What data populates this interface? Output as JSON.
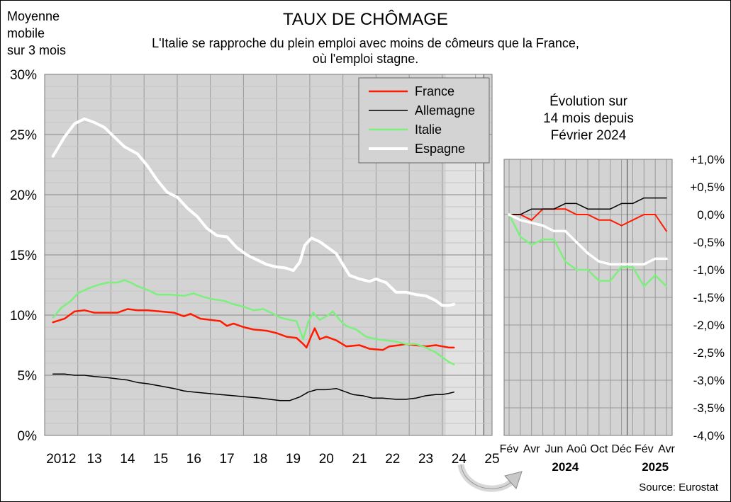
{
  "header": {
    "title": "TAUX DE CHÔMAGE",
    "subtitle_line1": "L'Italie se rapproche du plein emploi avec moins de cômeurs que la France,",
    "subtitle_line2": "où l'emploi stagne.",
    "ylabel_line1": "Moyenne",
    "ylabel_line2": "mobile",
    "ylabel_line3": "sur 3 mois",
    "source": "Source: Eurostat"
  },
  "chart_data": [
    {
      "type": "line",
      "title": "TAUX DE CHÔMAGE",
      "ylabel": "Moyenne mobile sur 3 mois",
      "ylim": [
        0,
        30
      ],
      "xlim": [
        2012,
        2025.5
      ],
      "y_ticks": [
        0,
        5,
        10,
        15,
        20,
        25,
        30
      ],
      "y_tick_labels": [
        "0%",
        "5%",
        "10%",
        "15%",
        "20%",
        "25%",
        "30%"
      ],
      "x_ticks": [
        2012.5,
        2013.5,
        2014.5,
        2015.5,
        2016.5,
        2017.5,
        2018.5,
        2019.5,
        2020.5,
        2021.5,
        2022.5,
        2023.5,
        2024.5,
        2025.5
      ],
      "x_tick_labels": [
        "2012",
        "13",
        "14",
        "15",
        "16",
        "17",
        "18",
        "19",
        "20",
        "21",
        "22",
        "23",
        "24",
        "25"
      ],
      "highlight_period": [
        2024.1,
        2025.25
      ],
      "grid": true,
      "legend_position": "top-right",
      "series": [
        {
          "name": "France",
          "color": "#ff1a00",
          "width": 2.5,
          "points": [
            [
              2012.25,
              9.4
            ],
            [
              2012.6,
              9.7
            ],
            [
              2012.9,
              10.3
            ],
            [
              2013.2,
              10.4
            ],
            [
              2013.5,
              10.2
            ],
            [
              2013.9,
              10.2
            ],
            [
              2014.2,
              10.2
            ],
            [
              2014.5,
              10.5
            ],
            [
              2014.8,
              10.4
            ],
            [
              2015.1,
              10.4
            ],
            [
              2015.5,
              10.3
            ],
            [
              2015.9,
              10.2
            ],
            [
              2016.2,
              9.9
            ],
            [
              2016.4,
              10.1
            ],
            [
              2016.7,
              9.7
            ],
            [
              2017.0,
              9.6
            ],
            [
              2017.3,
              9.5
            ],
            [
              2017.5,
              9.1
            ],
            [
              2017.7,
              9.3
            ],
            [
              2018.0,
              9.0
            ],
            [
              2018.3,
              8.8
            ],
            [
              2018.7,
              8.7
            ],
            [
              2019.0,
              8.5
            ],
            [
              2019.3,
              8.2
            ],
            [
              2019.6,
              8.1
            ],
            [
              2019.8,
              7.6
            ],
            [
              2019.9,
              7.3
            ],
            [
              2020.05,
              8.3
            ],
            [
              2020.15,
              8.9
            ],
            [
              2020.3,
              8.0
            ],
            [
              2020.5,
              8.2
            ],
            [
              2020.8,
              7.9
            ],
            [
              2021.1,
              7.4
            ],
            [
              2021.5,
              7.5
            ],
            [
              2021.8,
              7.2
            ],
            [
              2022.2,
              7.1
            ],
            [
              2022.4,
              7.4
            ],
            [
              2022.7,
              7.5
            ],
            [
              2022.9,
              7.6
            ],
            [
              2023.2,
              7.5
            ],
            [
              2023.5,
              7.4
            ],
            [
              2023.8,
              7.5
            ],
            [
              2024.0,
              7.4
            ],
            [
              2024.2,
              7.3
            ],
            [
              2024.35,
              7.3
            ]
          ]
        },
        {
          "name": "Allemagne",
          "color": "#000000",
          "width": 1.5,
          "points": [
            [
              2012.25,
              5.1
            ],
            [
              2012.6,
              5.1
            ],
            [
              2012.9,
              5.0
            ],
            [
              2013.2,
              5.0
            ],
            [
              2013.5,
              4.9
            ],
            [
              2013.9,
              4.8
            ],
            [
              2014.2,
              4.7
            ],
            [
              2014.5,
              4.6
            ],
            [
              2014.8,
              4.4
            ],
            [
              2015.1,
              4.3
            ],
            [
              2015.5,
              4.1
            ],
            [
              2015.9,
              3.9
            ],
            [
              2016.2,
              3.7
            ],
            [
              2016.5,
              3.6
            ],
            [
              2016.9,
              3.5
            ],
            [
              2017.3,
              3.4
            ],
            [
              2017.7,
              3.3
            ],
            [
              2018.1,
              3.2
            ],
            [
              2018.5,
              3.1
            ],
            [
              2018.8,
              3.0
            ],
            [
              2019.1,
              2.9
            ],
            [
              2019.4,
              2.9
            ],
            [
              2019.7,
              3.2
            ],
            [
              2019.95,
              3.6
            ],
            [
              2020.2,
              3.8
            ],
            [
              2020.5,
              3.8
            ],
            [
              2020.8,
              3.9
            ],
            [
              2021.0,
              3.7
            ],
            [
              2021.3,
              3.4
            ],
            [
              2021.6,
              3.3
            ],
            [
              2021.9,
              3.1
            ],
            [
              2022.2,
              3.1
            ],
            [
              2022.6,
              3.0
            ],
            [
              2022.9,
              3.0
            ],
            [
              2023.2,
              3.1
            ],
            [
              2023.5,
              3.3
            ],
            [
              2023.8,
              3.4
            ],
            [
              2024.0,
              3.4
            ],
            [
              2024.2,
              3.5
            ],
            [
              2024.35,
              3.6
            ]
          ]
        },
        {
          "name": "Italie",
          "color": "#7cf07c",
          "width": 2.5,
          "points": [
            [
              2012.25,
              9.8
            ],
            [
              2012.5,
              10.6
            ],
            [
              2012.8,
              11.2
            ],
            [
              2013.0,
              11.8
            ],
            [
              2013.3,
              12.2
            ],
            [
              2013.6,
              12.5
            ],
            [
              2013.9,
              12.7
            ],
            [
              2014.2,
              12.7
            ],
            [
              2014.4,
              12.9
            ],
            [
              2014.6,
              12.7
            ],
            [
              2014.8,
              12.4
            ],
            [
              2015.1,
              12.1
            ],
            [
              2015.4,
              11.7
            ],
            [
              2015.8,
              11.7
            ],
            [
              2016.2,
              11.6
            ],
            [
              2016.5,
              11.8
            ],
            [
              2016.8,
              11.5
            ],
            [
              2017.1,
              11.3
            ],
            [
              2017.4,
              11.2
            ],
            [
              2017.7,
              10.9
            ],
            [
              2018.0,
              10.7
            ],
            [
              2018.3,
              10.4
            ],
            [
              2018.6,
              10.5
            ],
            [
              2018.9,
              10.1
            ],
            [
              2019.1,
              9.8
            ],
            [
              2019.4,
              9.6
            ],
            [
              2019.6,
              9.5
            ],
            [
              2019.8,
              8.0
            ],
            [
              2019.95,
              9.4
            ],
            [
              2020.1,
              10.2
            ],
            [
              2020.3,
              9.6
            ],
            [
              2020.5,
              9.9
            ],
            [
              2020.7,
              10.3
            ],
            [
              2020.9,
              9.6
            ],
            [
              2021.1,
              9.1
            ],
            [
              2021.4,
              8.8
            ],
            [
              2021.7,
              8.2
            ],
            [
              2022.0,
              8.0
            ],
            [
              2022.3,
              7.9
            ],
            [
              2022.6,
              7.8
            ],
            [
              2022.9,
              7.6
            ],
            [
              2023.2,
              7.6
            ],
            [
              2023.5,
              7.3
            ],
            [
              2023.8,
              6.9
            ],
            [
              2024.0,
              6.5
            ],
            [
              2024.2,
              6.1
            ],
            [
              2024.35,
              5.9
            ]
          ]
        },
        {
          "name": "Espagne",
          "color": "#ffffff",
          "width": 4,
          "points": [
            [
              2012.25,
              23.2
            ],
            [
              2012.6,
              24.8
            ],
            [
              2012.9,
              25.9
            ],
            [
              2013.2,
              26.3
            ],
            [
              2013.5,
              26.0
            ],
            [
              2013.8,
              25.6
            ],
            [
              2014.1,
              24.8
            ],
            [
              2014.4,
              24.0
            ],
            [
              2014.8,
              23.4
            ],
            [
              2015.1,
              22.4
            ],
            [
              2015.4,
              21.2
            ],
            [
              2015.7,
              20.2
            ],
            [
              2016.0,
              19.8
            ],
            [
              2016.3,
              18.9
            ],
            [
              2016.6,
              18.2
            ],
            [
              2016.9,
              17.2
            ],
            [
              2017.2,
              16.6
            ],
            [
              2017.5,
              16.5
            ],
            [
              2017.8,
              15.6
            ],
            [
              2018.1,
              15.0
            ],
            [
              2018.4,
              14.6
            ],
            [
              2018.7,
              14.2
            ],
            [
              2019.0,
              14.0
            ],
            [
              2019.3,
              13.9
            ],
            [
              2019.5,
              13.7
            ],
            [
              2019.7,
              14.4
            ],
            [
              2019.85,
              15.8
            ],
            [
              2020.05,
              16.4
            ],
            [
              2020.3,
              16.1
            ],
            [
              2020.6,
              15.5
            ],
            [
              2020.8,
              15.1
            ],
            [
              2021.0,
              14.2
            ],
            [
              2021.2,
              13.3
            ],
            [
              2021.5,
              13.0
            ],
            [
              2021.8,
              12.8
            ],
            [
              2022.0,
              13.0
            ],
            [
              2022.3,
              12.7
            ],
            [
              2022.6,
              11.9
            ],
            [
              2022.9,
              11.9
            ],
            [
              2023.2,
              11.7
            ],
            [
              2023.5,
              11.6
            ],
            [
              2023.8,
              11.2
            ],
            [
              2024.0,
              10.8
            ],
            [
              2024.2,
              10.8
            ],
            [
              2024.35,
              10.9
            ]
          ]
        }
      ]
    },
    {
      "type": "line",
      "title": "Évolution sur 14 mois depuis Février 2024",
      "title_line1": "Évolution sur",
      "title_line2": "14 mois depuis",
      "title_line3": "Février 2024",
      "ylim": [
        -4.0,
        1.0
      ],
      "y_ticks": [
        1.0,
        0.5,
        0.0,
        -0.5,
        -1.0,
        -1.5,
        -2.0,
        -2.5,
        -3.0,
        -3.5,
        -4.0
      ],
      "y_tick_labels": [
        "+1,0%",
        "+0,5%",
        "0,0%",
        "-0,5%",
        "-1,0%",
        "-1,5%",
        "-2,0%",
        "-2,5%",
        "-3,0%",
        "-3,5%",
        "-4,0%"
      ],
      "x_tick_labels": [
        {
          "label": "Fév",
          "month": 0
        },
        {
          "label": "Avr",
          "month": 2
        },
        {
          "label": "Jun",
          "month": 4
        },
        {
          "label": "Aoû",
          "month": 6
        },
        {
          "label": "Oct",
          "month": 8
        },
        {
          "label": "Déc",
          "month": 10
        },
        {
          "label": "Fév",
          "month": 12
        },
        {
          "label": "Avr",
          "month": 14
        }
      ],
      "year_labels": [
        {
          "label": "2024",
          "month": 5
        },
        {
          "label": "2025",
          "month": 13
        }
      ],
      "months": [
        0,
        1,
        2,
        3,
        4,
        5,
        6,
        7,
        8,
        9,
        10,
        11,
        12,
        13,
        14
      ],
      "series": [
        {
          "name": "France",
          "color": "#ff1a00",
          "width": 2,
          "values": [
            0.0,
            0.0,
            -0.1,
            0.1,
            0.1,
            0.1,
            0.0,
            0.0,
            -0.1,
            -0.1,
            -0.2,
            -0.1,
            0.0,
            0.0,
            -0.3
          ]
        },
        {
          "name": "Allemagne",
          "color": "#000000",
          "width": 1.5,
          "values": [
            0.0,
            0.0,
            0.1,
            0.1,
            0.1,
            0.2,
            0.2,
            0.1,
            0.1,
            0.1,
            0.2,
            0.2,
            0.3,
            0.3,
            0.3
          ]
        },
        {
          "name": "Italie",
          "color": "#7cf07c",
          "width": 2.5,
          "values": [
            0.0,
            -0.4,
            -0.55,
            -0.45,
            -0.45,
            -0.85,
            -1.0,
            -1.0,
            -1.2,
            -1.2,
            -0.95,
            -0.95,
            -1.3,
            -1.1,
            -1.3
          ]
        },
        {
          "name": "Espagne",
          "color": "#ffffff",
          "width": 3.5,
          "values": [
            0.0,
            -0.1,
            -0.15,
            -0.2,
            -0.3,
            -0.3,
            -0.5,
            -0.7,
            -0.85,
            -0.9,
            -0.9,
            -0.9,
            -0.9,
            -0.8,
            -0.8
          ]
        }
      ]
    }
  ]
}
